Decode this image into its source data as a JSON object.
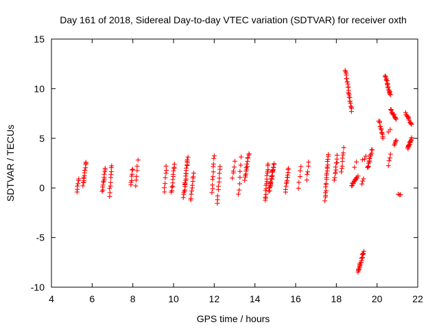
{
  "chart_data": {
    "type": "scatter",
    "title": "Day 161 of 2018, Sidereal Day-to-day VTEC variation (SDTVAR) for receiver oxth",
    "xlabel": "GPS time / hours",
    "ylabel": "SDTVAR / TECUs",
    "xlim": [
      4,
      22
    ],
    "ylim": [
      -10,
      15
    ],
    "xticks": [
      "4",
      "6",
      "8",
      "10",
      "12",
      "14",
      "16",
      "18",
      "20",
      "22"
    ],
    "yticks": [
      "-10",
      "-5",
      "0",
      "5",
      "10",
      "15"
    ],
    "grid": false,
    "legend": "none",
    "marker": "+",
    "marker_color": "#ff0000",
    "series": [
      {
        "name": "SDTVAR",
        "segments": [
          {
            "x0": 5.25,
            "x1": 5.35,
            "y0": -0.4,
            "y1": 0.9,
            "n": 6
          },
          {
            "x0": 5.55,
            "x1": 5.7,
            "y0": 0.3,
            "y1": 2.6,
            "n": 14
          },
          {
            "x0": 6.5,
            "x1": 6.65,
            "y0": -0.4,
            "y1": 2.0,
            "n": 12
          },
          {
            "x0": 6.85,
            "x1": 6.95,
            "y0": -0.8,
            "y1": 2.3,
            "n": 10
          },
          {
            "x0": 7.9,
            "x1": 8.0,
            "y0": 0.2,
            "y1": 2.0,
            "n": 7
          },
          {
            "x0": 8.15,
            "x1": 8.25,
            "y0": 0.3,
            "y1": 2.7,
            "n": 6
          },
          {
            "x0": 9.55,
            "x1": 9.65,
            "y0": -0.3,
            "y1": 2.3,
            "n": 7
          },
          {
            "x0": 9.9,
            "x1": 10.05,
            "y0": -0.5,
            "y1": 2.4,
            "n": 12
          },
          {
            "x0": 10.5,
            "x1": 10.7,
            "y0": -0.9,
            "y1": 3.1,
            "n": 22
          },
          {
            "x0": 10.85,
            "x1": 11.0,
            "y0": -1.3,
            "y1": 1.5,
            "n": 10
          },
          {
            "x0": 11.9,
            "x1": 12.0,
            "y0": -0.5,
            "y1": 3.3,
            "n": 10
          },
          {
            "x0": 12.15,
            "x1": 12.3,
            "y0": -1.5,
            "y1": 2.2,
            "n": 10
          },
          {
            "x0": 12.9,
            "x1": 13.0,
            "y0": 1.0,
            "y1": 2.6,
            "n": 5
          },
          {
            "x0": 13.2,
            "x1": 13.3,
            "y0": -0.7,
            "y1": 3.0,
            "n": 7
          },
          {
            "x0": 13.5,
            "x1": 13.7,
            "y0": 0.8,
            "y1": 3.5,
            "n": 14
          },
          {
            "x0": 14.5,
            "x1": 14.65,
            "y0": -1.3,
            "y1": 2.4,
            "n": 16
          },
          {
            "x0": 14.7,
            "x1": 14.95,
            "y0": -0.3,
            "y1": 2.4,
            "n": 24
          },
          {
            "x0": 15.5,
            "x1": 15.65,
            "y0": -0.3,
            "y1": 2.0,
            "n": 12
          },
          {
            "x0": 16.15,
            "x1": 16.25,
            "y0": 0.0,
            "y1": 2.2,
            "n": 5
          },
          {
            "x0": 16.55,
            "x1": 16.65,
            "y0": 0.8,
            "y1": 2.7,
            "n": 5
          },
          {
            "x0": 17.45,
            "x1": 17.6,
            "y0": -1.2,
            "y1": 3.4,
            "n": 20
          },
          {
            "x0": 17.9,
            "x1": 18.05,
            "y0": 0.8,
            "y1": 3.2,
            "n": 10
          },
          {
            "x0": 18.25,
            "x1": 18.35,
            "y0": 1.5,
            "y1": 4.0,
            "n": 8
          },
          {
            "x0": 18.45,
            "x1": 18.75,
            "y0": 11.8,
            "y1": 7.8,
            "n": 24
          },
          {
            "x0": 18.75,
            "x1": 19.05,
            "y0": 0.2,
            "y1": 1.2,
            "n": 14
          },
          {
            "x0": 18.9,
            "x1": 19.0,
            "y0": 2.2,
            "y1": 2.5,
            "n": 2
          },
          {
            "x0": 19.05,
            "x1": 19.35,
            "y0": -8.5,
            "y1": -6.4,
            "n": 22
          },
          {
            "x0": 19.25,
            "x1": 19.35,
            "y0": 0.5,
            "y1": 1.0,
            "n": 3
          },
          {
            "x0": 19.3,
            "x1": 19.45,
            "y0": 2.9,
            "y1": 3.1,
            "n": 3
          },
          {
            "x0": 19.55,
            "x1": 19.75,
            "y0": 2.0,
            "y1": 3.9,
            "n": 14
          },
          {
            "x0": 20.1,
            "x1": 20.3,
            "y0": 6.8,
            "y1": 5.0,
            "n": 12
          },
          {
            "x0": 20.4,
            "x1": 20.65,
            "y0": 11.3,
            "y1": 9.4,
            "n": 20
          },
          {
            "x0": 20.55,
            "x1": 20.65,
            "y0": 2.2,
            "y1": 3.5,
            "n": 4
          },
          {
            "x0": 20.55,
            "x1": 20.65,
            "y0": 5.7,
            "y1": 6.0,
            "n": 2
          },
          {
            "x0": 20.65,
            "x1": 20.95,
            "y0": 7.9,
            "y1": 7.0,
            "n": 14
          },
          {
            "x0": 20.85,
            "x1": 20.95,
            "y0": 4.2,
            "y1": 4.8,
            "n": 5
          },
          {
            "x0": 21.05,
            "x1": 21.15,
            "y0": -0.7,
            "y1": -0.6,
            "n": 3
          },
          {
            "x0": 21.4,
            "x1": 21.7,
            "y0": 7.6,
            "y1": 6.3,
            "n": 14
          },
          {
            "x0": 21.5,
            "x1": 21.7,
            "y0": 4.0,
            "y1": 5.0,
            "n": 16
          }
        ]
      }
    ]
  }
}
